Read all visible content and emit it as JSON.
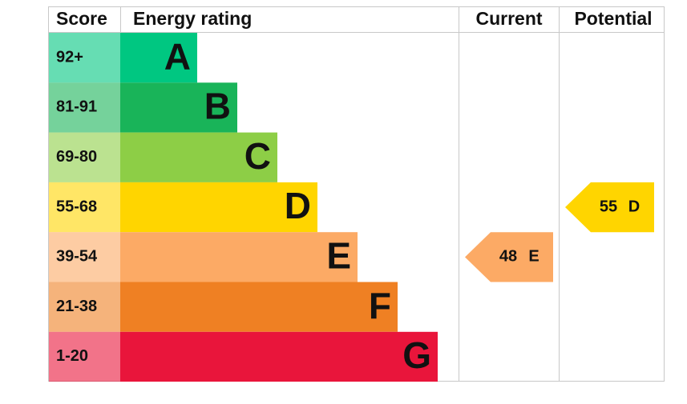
{
  "header": {
    "score": "Score",
    "rating": "Energy rating",
    "current": "Current",
    "potential": "Potential"
  },
  "bands": [
    {
      "range": "92+",
      "letter": "A",
      "color": "#00c781"
    },
    {
      "range": "81-91",
      "letter": "B",
      "color": "#19b459"
    },
    {
      "range": "69-80",
      "letter": "C",
      "color": "#8dce46"
    },
    {
      "range": "55-68",
      "letter": "D",
      "color": "#ffd500"
    },
    {
      "range": "39-54",
      "letter": "E",
      "color": "#fcaa65"
    },
    {
      "range": "21-38",
      "letter": "F",
      "color": "#ef8023"
    },
    {
      "range": "1-20",
      "letter": "G",
      "color": "#e9153b"
    }
  ],
  "current": {
    "score": 48,
    "rating": "E"
  },
  "potential": {
    "score": 55,
    "rating": "D"
  }
}
